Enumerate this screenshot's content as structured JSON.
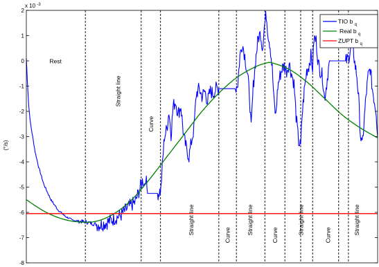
{
  "chart_data": {
    "type": "line",
    "multiplier_label": "x 10",
    "multiplier_exp": "-3",
    "ylabel": "(°/s)",
    "ylim": [
      -8,
      2
    ],
    "xlim": [
      0,
      100
    ],
    "yticks": [
      {
        "v": 2,
        "label": "2"
      },
      {
        "v": 1,
        "label": "1"
      },
      {
        "v": 0,
        "label": "0"
      },
      {
        "v": -1,
        "label": "-1"
      },
      {
        "v": -2,
        "label": "-2"
      },
      {
        "v": -3,
        "label": "-3"
      },
      {
        "v": -4,
        "label": "-4"
      },
      {
        "v": -5,
        "label": "-5"
      },
      {
        "v": -6,
        "label": "-6"
      },
      {
        "v": -7,
        "label": "-7"
      },
      {
        "v": -8,
        "label": "-8"
      }
    ],
    "phase_boundaries": [
      16.8,
      32.7,
      38.2,
      54.8,
      59.8,
      67.9,
      73.6,
      78.1,
      81.5,
      88.9,
      91.7
    ],
    "annotations": [
      {
        "text": "Rest",
        "x": 8.3,
        "y": -0.1,
        "rotate": false
      },
      {
        "text": "Straight line",
        "x": 26.7,
        "y": -1.2,
        "rotate": true
      },
      {
        "text": "Curve",
        "x": 36.1,
        "y": -2.5,
        "rotate": true
      },
      {
        "text": "Straight line",
        "x": 47.5,
        "y": -6.3,
        "rotate": true
      },
      {
        "text": "Curve",
        "x": 57.9,
        "y": -6.9,
        "rotate": true
      },
      {
        "text": "Straight line",
        "x": 64.3,
        "y": -6.3,
        "rotate": true
      },
      {
        "text": "Curve",
        "x": 71.4,
        "y": -6.9,
        "rotate": true
      },
      {
        "text": "Straight line",
        "x": 78.8,
        "y": -6.3,
        "rotate": true
      },
      {
        "text": "Curve",
        "x": 86.5,
        "y": -6.9,
        "rotate": true
      },
      {
        "text": "Straight line",
        "x": 94.7,
        "y": -6.3,
        "rotate": true
      }
    ],
    "legend": {
      "placement": "top-right",
      "items": [
        {
          "base": "TIO b",
          "sub": "q",
          "color": "#0000ff"
        },
        {
          "base": "Real b",
          "sub": "q",
          "color": "#008000"
        },
        {
          "base": "ZUPT b",
          "sub": "q",
          "color": "#ff0000"
        }
      ]
    },
    "series": [
      {
        "key": "tio",
        "color": "#0000ff",
        "noise": true,
        "points": [
          [
            0,
            0.1
          ],
          [
            0.3,
            -0.8
          ],
          [
            0.7,
            -1.8
          ],
          [
            1.2,
            -2.5
          ],
          [
            1.8,
            -3.0
          ],
          [
            2.5,
            -3.6
          ],
          [
            3.5,
            -4.2
          ],
          [
            5,
            -4.9
          ],
          [
            7,
            -5.5
          ],
          [
            9,
            -5.9
          ],
          [
            11,
            -6.15
          ],
          [
            13,
            -6.3
          ],
          [
            15,
            -6.35
          ],
          [
            17,
            -6.38
          ],
          [
            19,
            -6.45
          ],
          [
            21,
            -6.5
          ],
          [
            23,
            -6.4
          ],
          [
            25,
            -6.25
          ],
          [
            27,
            -6.1
          ],
          [
            29,
            -5.8
          ],
          [
            31,
            -5.6
          ],
          [
            32.7,
            -4.9
          ],
          [
            33.2,
            -4.7
          ],
          [
            33.6,
            -4.9
          ],
          [
            34,
            -4.6
          ],
          [
            34.5,
            -5.25
          ],
          [
            37.5,
            -5.25
          ],
          [
            38.3,
            -5.1
          ],
          [
            38.7,
            -4.2
          ],
          [
            39.3,
            -3.0
          ],
          [
            40,
            -2.7
          ],
          [
            40.6,
            -2.0
          ],
          [
            41.2,
            -2.9
          ],
          [
            41.8,
            -1.8
          ],
          [
            42.5,
            -1.6
          ],
          [
            43.2,
            -2.1
          ],
          [
            44,
            -1.8
          ],
          [
            44.8,
            -3.0
          ],
          [
            45.6,
            -3.5
          ],
          [
            46.3,
            -3.8
          ],
          [
            47,
            -3.2
          ],
          [
            47.7,
            -2.7
          ],
          [
            48.4,
            -1.3
          ],
          [
            49.2,
            -1.1
          ],
          [
            50,
            -1.4
          ],
          [
            50.8,
            -1.2
          ],
          [
            51.6,
            -1.6
          ],
          [
            52.4,
            -1.2
          ],
          [
            53.2,
            -1.3
          ],
          [
            54,
            -1.1
          ],
          [
            54.8,
            -1.1
          ],
          [
            59.5,
            -1.1
          ],
          [
            60.2,
            -0.9
          ],
          [
            60.8,
            0.2
          ],
          [
            61.5,
            0.7
          ],
          [
            62.2,
            0.2
          ],
          [
            63,
            -0.6
          ],
          [
            63.5,
            -1.3
          ],
          [
            64,
            -2.7
          ],
          [
            64.6,
            -1.0
          ],
          [
            65.4,
            0.2
          ],
          [
            66,
            0.9
          ],
          [
            66.7,
            1.1
          ],
          [
            67.2,
            0.5
          ],
          [
            67.7,
            1.3
          ],
          [
            68.3,
            1.85
          ],
          [
            68.8,
            1.1
          ],
          [
            69.4,
            0.6
          ],
          [
            70,
            -0.3
          ],
          [
            70.5,
            -1.6
          ],
          [
            71,
            -2.2
          ],
          [
            71.6,
            -1.0
          ],
          [
            72.2,
            -0.6
          ],
          [
            72.8,
            -0.3
          ],
          [
            73.4,
            -0.2
          ],
          [
            74.1,
            -0.4
          ],
          [
            74.8,
            -0.1
          ],
          [
            75.5,
            -0.5
          ],
          [
            76.2,
            -0.9
          ],
          [
            76.8,
            -2.2
          ],
          [
            77.5,
            -3.2
          ],
          [
            78.1,
            -3.4
          ],
          [
            78.5,
            -2.2
          ],
          [
            79.1,
            -1.2
          ],
          [
            79.8,
            -0.4
          ],
          [
            80.4,
            -0.2
          ],
          [
            81,
            0.2
          ],
          [
            81.5,
            -0.3
          ],
          [
            81.9,
            0.9
          ],
          [
            82.5,
            0.8
          ],
          [
            83.1,
            -0.1
          ],
          [
            83.7,
            -0.4
          ],
          [
            84.3,
            -0.6
          ],
          [
            84.9,
            -1.5
          ],
          [
            85.5,
            -0.9
          ],
          [
            86,
            -0.3
          ],
          [
            86.5,
            0.0
          ],
          [
            91,
            0.0
          ],
          [
            91.7,
            0.1
          ],
          [
            92.3,
            0.5
          ],
          [
            92.9,
            0.7
          ],
          [
            93.5,
            -0.1
          ],
          [
            94.1,
            -0.6
          ],
          [
            94.6,
            -1.5
          ],
          [
            95.1,
            -2.9
          ],
          [
            95.6,
            -3.4
          ],
          [
            96.1,
            -2.5
          ],
          [
            96.7,
            -1.4
          ],
          [
            97.3,
            -0.6
          ],
          [
            97.9,
            -0.3
          ],
          [
            98.5,
            -1.1
          ],
          [
            99.1,
            -1.6
          ],
          [
            99.6,
            -2.0
          ],
          [
            100,
            -3.0
          ]
        ]
      },
      {
        "key": "real",
        "color": "#008000",
        "noise": false,
        "points": [
          [
            0,
            -5.5
          ],
          [
            5,
            -5.95
          ],
          [
            10,
            -6.25
          ],
          [
            15,
            -6.38
          ],
          [
            20,
            -6.35
          ],
          [
            25,
            -6.05
          ],
          [
            30,
            -5.5
          ],
          [
            35,
            -4.7
          ],
          [
            40,
            -3.8
          ],
          [
            45,
            -2.9
          ],
          [
            50,
            -2.0
          ],
          [
            55,
            -1.25
          ],
          [
            60,
            -0.65
          ],
          [
            65,
            -0.25
          ],
          [
            68,
            -0.1
          ],
          [
            70,
            -0.08
          ],
          [
            75,
            -0.35
          ],
          [
            80,
            -0.85
          ],
          [
            85,
            -1.5
          ],
          [
            90,
            -2.15
          ],
          [
            95,
            -2.65
          ],
          [
            100,
            -3.05
          ]
        ]
      },
      {
        "key": "zupt",
        "color": "#ff0000",
        "noise": false,
        "points": [
          [
            0,
            -6.05
          ],
          [
            100,
            -6.05
          ]
        ]
      }
    ]
  }
}
